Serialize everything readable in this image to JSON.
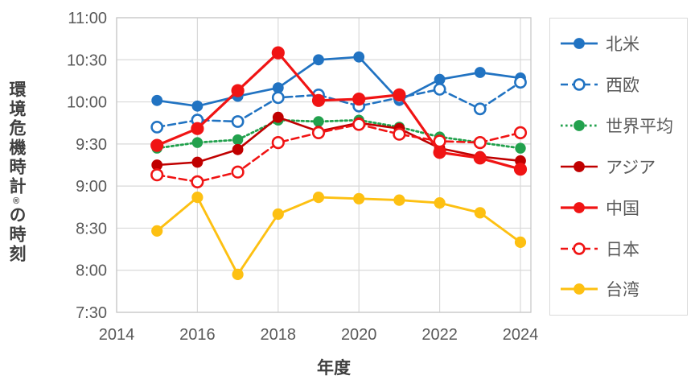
{
  "chart_data": {
    "type": "line",
    "title": "",
    "xlabel": "年度",
    "ylabel": "環境危機時計®の時刻",
    "ylabel_parts": {
      "main": "環境危機時計",
      "reg": "®",
      "suffix": "の時刻"
    },
    "x_ticks": [
      "2014",
      "2016",
      "2018",
      "2020",
      "2022",
      "2024"
    ],
    "y_ticks": [
      "7:30",
      "8:00",
      "8:30",
      "9:00",
      "9:30",
      "10:00",
      "10:30",
      "11:00"
    ],
    "x_range": [
      2014,
      2024
    ],
    "y_range": [
      "7:30",
      "11:00"
    ],
    "grid": true,
    "legend_position": "right",
    "years": [
      2015,
      2016,
      2017,
      2018,
      2019,
      2020,
      2021,
      2022,
      2023,
      2024
    ],
    "series": [
      {
        "id": "north-america",
        "name": "北米",
        "color": "#2173c2",
        "line": "solid",
        "marker": "filled",
        "values": [
          "10:01",
          "9:57",
          "10:04",
          "10:10",
          "10:30",
          "10:32",
          "10:01",
          "10:16",
          "10:21",
          "10:17"
        ]
      },
      {
        "id": "west-europe",
        "name": "西欧",
        "color": "#2173c2",
        "line": "dashed",
        "marker": "open",
        "values": [
          "9:42",
          "9:47",
          "9:46",
          "10:03",
          "10:05",
          "9:57",
          "10:03",
          "10:09",
          "9:55",
          "10:14"
        ]
      },
      {
        "id": "world-average",
        "name": "世界平均",
        "color": "#22a14d",
        "line": "dotted",
        "marker": "filled",
        "values": [
          "9:27",
          "9:31",
          "9:33",
          "9:47",
          "9:46",
          "9:47",
          "9:42",
          "9:35",
          "9:31",
          "9:27"
        ]
      },
      {
        "id": "asia",
        "name": "アジア",
        "color": "#c00000",
        "line": "solid",
        "marker": "filled",
        "values": [
          "9:15",
          "9:17",
          "9:26",
          "9:49",
          "9:39",
          "9:45",
          "9:41",
          "9:27",
          "9:21",
          "9:18"
        ]
      },
      {
        "id": "china",
        "name": "中国",
        "color": "#f01414",
        "line": "solid",
        "marker": "filled",
        "values": [
          "9:29",
          "9:41",
          "10:08",
          "10:35",
          "10:01",
          "10:02",
          "10:05",
          "9:24",
          "9:20",
          "9:12"
        ]
      },
      {
        "id": "japan",
        "name": "日本",
        "color": "#f01414",
        "line": "dashed",
        "marker": "open",
        "values": [
          "9:08",
          "9:03",
          "9:10",
          "9:31",
          "9:38",
          "9:44",
          "9:37",
          "9:32",
          "9:31",
          "9:38"
        ]
      },
      {
        "id": "taiwan",
        "name": "台湾",
        "color": "#fdc012",
        "line": "solid",
        "marker": "filled",
        "values": [
          "8:28",
          "8:52",
          "7:57",
          "8:40",
          "8:52",
          "8:51",
          "8:50",
          "8:48",
          "8:41",
          "8:20"
        ]
      }
    ],
    "colors": {
      "grid": "#d9d9d9",
      "plot_border": "#c8c8c8",
      "tick_text": "#595959",
      "axis_title_text": "#3f3f3f",
      "legend_border": "#d9d9d9"
    }
  }
}
